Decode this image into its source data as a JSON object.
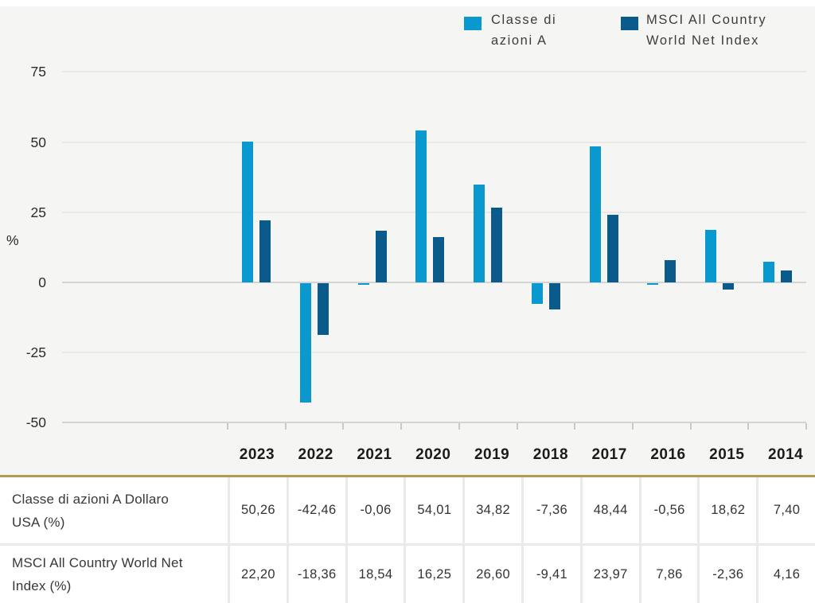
{
  "colors": {
    "background": "#f5f5f3",
    "series1": "#0999ce",
    "series2": "#0a5a8b",
    "gold_rule": "#b59b50",
    "gridline": "#e8e8e6",
    "gridline_major": "#d4d4d2"
  },
  "legend": {
    "items": [
      {
        "line1": "Classe di",
        "line2": "azioni A",
        "color": "#0999ce"
      },
      {
        "line1": "MSCI All Country",
        "line2": "World Net Index",
        "color": "#0a5a8b"
      }
    ]
  },
  "chart_data": {
    "type": "bar",
    "categories": [
      "2023",
      "2022",
      "2021",
      "2020",
      "2019",
      "2018",
      "2017",
      "2016",
      "2015",
      "2014"
    ],
    "series": [
      {
        "name": "Classe di azioni A",
        "color": "#0999ce",
        "values": [
          50.26,
          -42.46,
          -0.06,
          54.01,
          34.82,
          -7.36,
          48.44,
          -0.56,
          18.62,
          7.4
        ]
      },
      {
        "name": "MSCI All Country World Net Index",
        "color": "#0a5a8b",
        "values": [
          22.2,
          -18.36,
          18.54,
          16.25,
          26.6,
          -9.41,
          23.97,
          7.86,
          -2.36,
          4.16
        ]
      }
    ],
    "title": "",
    "xlabel": "",
    "ylabel": "%",
    "yticks": [
      75,
      50,
      25,
      0,
      -25,
      -50
    ],
    "ylim": [
      -50,
      75
    ],
    "grid": true,
    "legend_position": "top"
  },
  "table": {
    "columns": [
      "2023",
      "2022",
      "2021",
      "2020",
      "2019",
      "2018",
      "2017",
      "2016",
      "2015",
      "2014"
    ],
    "rows": [
      {
        "label_line1": "Classe di azioni A Dollaro",
        "label_line2": "USA (%)",
        "values": [
          "50,26",
          "-42,46",
          "-0,06",
          "54,01",
          "34,82",
          "-7,36",
          "48,44",
          "-0,56",
          "18,62",
          "7,40"
        ]
      },
      {
        "label_line1": "MSCI All Country World Net",
        "label_line2": "Index (%)",
        "values": [
          "22,20",
          "-18,36",
          "18,54",
          "16,25",
          "26,60",
          "-9,41",
          "23,97",
          "7,86",
          "-2,36",
          "4,16"
        ]
      }
    ]
  }
}
